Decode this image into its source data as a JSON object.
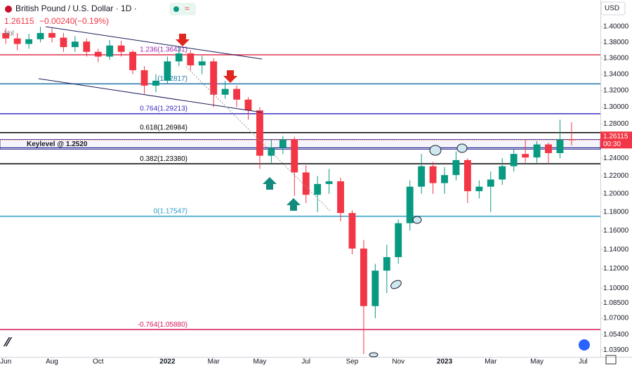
{
  "chart_data": {
    "type": "candlestick",
    "title": "British Pound / U.S. Dollar · 1D ·",
    "last_price": {
      "value": 1.26115,
      "label": "1.26115"
    },
    "change": "−0.00240",
    "change_pct": "(−0.19%)",
    "volume_label": "Vol",
    "currency": "USD",
    "countdown": "00:30",
    "log_scale": true,
    "up_color": "#089981",
    "down_color": "#f23645",
    "xlim": [
      -0.5,
      51.5
    ],
    "xticks": [
      {
        "value": 0,
        "label": "Jun"
      },
      {
        "value": 4,
        "label": "Aug"
      },
      {
        "value": 8,
        "label": "Oct"
      },
      {
        "value": 14,
        "label": "2022"
      },
      {
        "value": 18,
        "label": "Mar"
      },
      {
        "value": 22,
        "label": "May"
      },
      {
        "value": 26,
        "label": "Jul"
      },
      {
        "value": 30,
        "label": "Sep"
      },
      {
        "value": 34,
        "label": "Nov"
      },
      {
        "value": 38,
        "label": "2023"
      },
      {
        "value": 42,
        "label": "Mar"
      },
      {
        "value": 46,
        "label": "May"
      },
      {
        "value": 50,
        "label": "Jul"
      }
    ],
    "ylim": [
      1.0325,
      1.435
    ],
    "yticks": [
      {
        "value": 1.4,
        "label": "1.40000"
      },
      {
        "value": 1.38,
        "label": "1.38000"
      },
      {
        "value": 1.36,
        "label": "1.36000"
      },
      {
        "value": 1.34,
        "label": "1.34000"
      },
      {
        "value": 1.32,
        "label": "1.32000"
      },
      {
        "value": 1.3,
        "label": "1.30000"
      },
      {
        "value": 1.28,
        "label": "1.28000"
      },
      {
        "value": 1.24,
        "label": "1.24000"
      },
      {
        "value": 1.22,
        "label": "1.22000"
      },
      {
        "value": 1.2,
        "label": "1.20000"
      },
      {
        "value": 1.18,
        "label": "1.18000"
      },
      {
        "value": 1.16,
        "label": "1.16000"
      },
      {
        "value": 1.14,
        "label": "1.14000"
      },
      {
        "value": 1.12,
        "label": "1.12000"
      },
      {
        "value": 1.1,
        "label": "1.10000"
      },
      {
        "value": 1.085,
        "label": "1.08500"
      },
      {
        "value": 1.07,
        "label": "1.07000"
      },
      {
        "value": 1.054,
        "label": "1.05400"
      },
      {
        "value": 1.039,
        "label": "1.03900"
      }
    ],
    "open": [
      1.392,
      1.385,
      1.378,
      1.384,
      1.392,
      1.386,
      1.374,
      1.381,
      1.368,
      1.362,
      1.376,
      1.368,
      1.345,
      1.326,
      1.332,
      1.356,
      1.366,
      1.351,
      1.356,
      1.315,
      1.322,
      1.309,
      1.296,
      1.243,
      1.252,
      1.262,
      1.224,
      1.199,
      1.211,
      1.214,
      1.179,
      1.141,
      1.082,
      1.118,
      1.132,
      1.168,
      1.208,
      1.231,
      1.212,
      1.221,
      1.238,
      1.203,
      1.208,
      1.216,
      1.231,
      1.245,
      1.241,
      1.256,
      1.246,
      1.262
    ],
    "high": [
      1.398,
      1.392,
      1.391,
      1.4,
      1.398,
      1.392,
      1.388,
      1.385,
      1.372,
      1.383,
      1.382,
      1.37,
      1.35,
      1.34,
      1.362,
      1.375,
      1.37,
      1.363,
      1.36,
      1.332,
      1.326,
      1.312,
      1.3,
      1.262,
      1.266,
      1.265,
      1.232,
      1.22,
      1.228,
      1.218,
      1.182,
      1.15,
      1.125,
      1.145,
      1.172,
      1.215,
      1.245,
      1.236,
      1.23,
      1.248,
      1.24,
      1.215,
      1.225,
      1.24,
      1.25,
      1.262,
      1.26,
      1.258,
      1.285,
      1.282
    ],
    "low": [
      1.378,
      1.37,
      1.372,
      1.38,
      1.38,
      1.368,
      1.368,
      1.362,
      1.355,
      1.358,
      1.362,
      1.34,
      1.316,
      1.318,
      1.328,
      1.35,
      1.345,
      1.34,
      1.3,
      1.31,
      1.3,
      1.285,
      1.228,
      1.235,
      1.245,
      1.198,
      1.19,
      1.18,
      1.2,
      1.17,
      1.135,
      1.035,
      1.07,
      1.095,
      1.125,
      1.16,
      1.2,
      1.2,
      1.2,
      1.215,
      1.19,
      1.195,
      1.18,
      1.21,
      1.225,
      1.235,
      1.235,
      1.235,
      1.24,
      1.255
    ],
    "close": [
      1.385,
      1.378,
      1.384,
      1.392,
      1.386,
      1.374,
      1.381,
      1.368,
      1.362,
      1.376,
      1.368,
      1.345,
      1.326,
      1.332,
      1.356,
      1.366,
      1.351,
      1.356,
      1.315,
      1.322,
      1.309,
      1.296,
      1.243,
      1.252,
      1.262,
      1.224,
      1.199,
      1.211,
      1.214,
      1.179,
      1.141,
      1.082,
      1.118,
      1.132,
      1.168,
      1.208,
      1.231,
      1.212,
      1.221,
      1.238,
      1.203,
      1.208,
      1.216,
      1.231,
      1.245,
      1.241,
      1.256,
      1.246,
      1.262,
      1.261
    ],
    "levels": [
      {
        "label": "1.236(1.36431)",
        "value": 1.36431,
        "color": "#e0304e",
        "text_color": "#9c27b0"
      },
      {
        "label": "(1.32817)",
        "value": 1.32817,
        "color": "#1e73a8",
        "text_color": "#1e73a8"
      },
      {
        "label": "0.764(1.29213)",
        "value": 1.29213,
        "color": "#3a2fc0",
        "text_color": "#3a2fc0"
      },
      {
        "label": "0.618(1.26984)",
        "value": 1.26984,
        "color": "#000000",
        "text_color": "#000000"
      },
      {
        "label": "0.382(1.23380)",
        "value": 1.2338,
        "color": "#000000",
        "text_color": "#000000"
      },
      {
        "label": "0(1.17547)",
        "value": 1.17547,
        "color": "#2a9cc4",
        "text_color": "#2a9cc4"
      },
      {
        "label": "-0.764(1.05880)",
        "value": 1.0588,
        "color": "#d6195a",
        "text_color": "#d6195a"
      }
    ],
    "key_level": {
      "label": "Keylevel @ 1.2520",
      "value": 1.252,
      "color": "#1c1c8c"
    }
  }
}
